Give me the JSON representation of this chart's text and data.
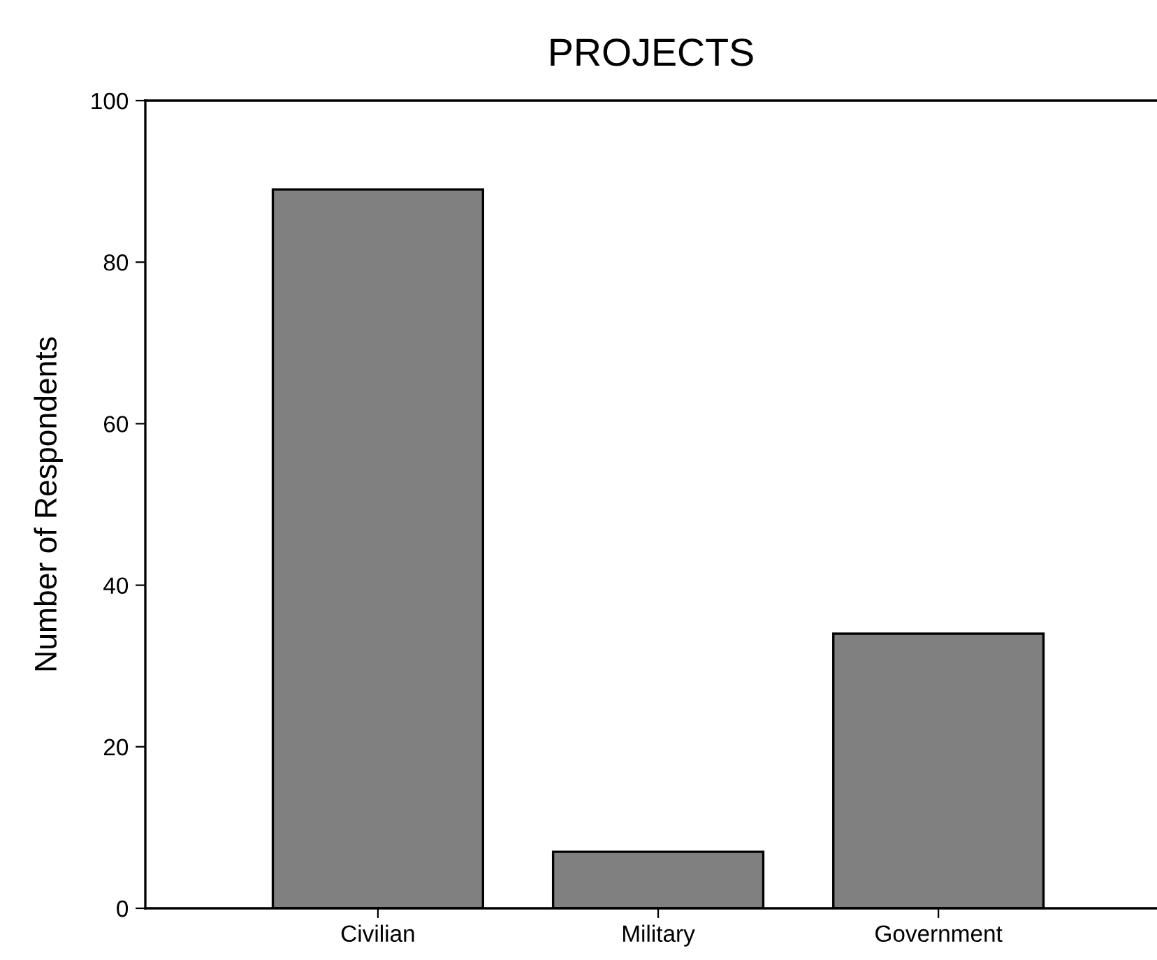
{
  "chart_data": {
    "type": "bar",
    "title": "PROJECTS",
    "ylabel": "Number of Respondents",
    "categories": [
      "Civilian",
      "Military",
      "Government"
    ],
    "values": [
      89,
      7,
      34
    ],
    "color": "#808080",
    "ylim": [
      0,
      100
    ],
    "yticks": [
      0,
      20,
      40,
      60,
      80,
      100
    ],
    "grid": false
  }
}
